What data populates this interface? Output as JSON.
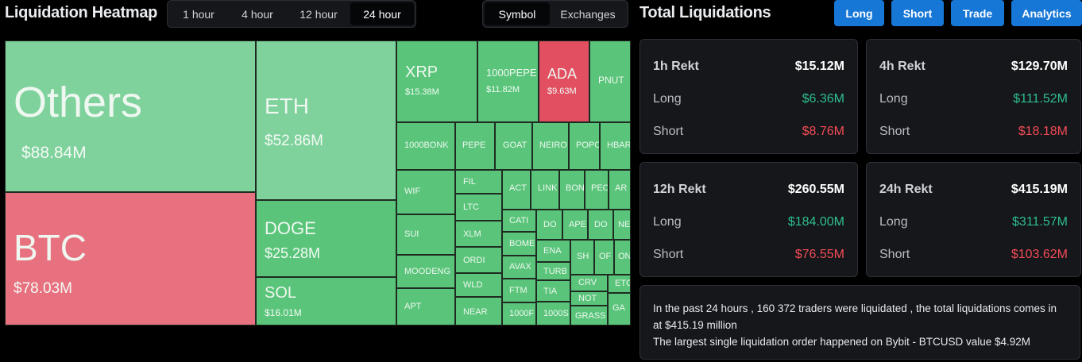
{
  "heatmap": {
    "title": "Liquidation Heatmap",
    "timeframes": [
      "1 hour",
      "4 hour",
      "12 hour",
      "24 hour"
    ],
    "active_timeframe": "24 hour",
    "modes": [
      "Symbol",
      "Exchanges"
    ],
    "active_mode": "Symbol",
    "tiles": [
      {
        "name": "Others",
        "value": "$88.84M",
        "color": "lg"
      },
      {
        "name": "BTC",
        "value": "$78.03M",
        "color": "r"
      },
      {
        "name": "ETH",
        "value": "$52.86M",
        "color": "lg"
      },
      {
        "name": "DOGE",
        "value": "$25.28M",
        "color": "g"
      },
      {
        "name": "SOL",
        "value": "$16.01M",
        "color": "g"
      },
      {
        "name": "XRP",
        "value": "$15.38M",
        "color": "g"
      },
      {
        "name": "1000PEPE",
        "value": "$11.82M",
        "color": "g"
      },
      {
        "name": "ADA",
        "value": "$9.63M",
        "color": "dr"
      },
      {
        "name": "PNUT",
        "value": "",
        "color": "g"
      },
      {
        "name": "1000BONK",
        "value": "",
        "color": "g"
      },
      {
        "name": "PEPE",
        "value": "",
        "color": "g"
      },
      {
        "name": "GOAT",
        "value": "",
        "color": "g"
      },
      {
        "name": "NEIRO",
        "value": "",
        "color": "g"
      },
      {
        "name": "POPC",
        "value": "",
        "color": "g"
      },
      {
        "name": "HBAR",
        "value": "",
        "color": "g"
      },
      {
        "name": "WIF",
        "value": "",
        "color": "g"
      },
      {
        "name": "FIL",
        "value": "",
        "color": "g"
      },
      {
        "name": "ACT",
        "value": "",
        "color": "g"
      },
      {
        "name": "LINK",
        "value": "",
        "color": "g"
      },
      {
        "name": "BON",
        "value": "",
        "color": "g"
      },
      {
        "name": "PEO",
        "value": "",
        "color": "g"
      },
      {
        "name": "AR",
        "value": "",
        "color": "g"
      },
      {
        "name": "LTC",
        "value": "",
        "color": "g"
      },
      {
        "name": "SUI",
        "value": "",
        "color": "g"
      },
      {
        "name": "XLM",
        "value": "",
        "color": "g"
      },
      {
        "name": "CATI",
        "value": "",
        "color": "g"
      },
      {
        "name": "DO",
        "value": "",
        "color": "g"
      },
      {
        "name": "APE",
        "value": "",
        "color": "g"
      },
      {
        "name": "DO",
        "value": "",
        "color": "g"
      },
      {
        "name": "NE",
        "value": "",
        "color": "g"
      },
      {
        "name": "BOME",
        "value": "",
        "color": "g"
      },
      {
        "name": "ORDI",
        "value": "",
        "color": "g"
      },
      {
        "name": "ENA",
        "value": "",
        "color": "g"
      },
      {
        "name": "SH",
        "value": "",
        "color": "g"
      },
      {
        "name": "OF",
        "value": "",
        "color": "g"
      },
      {
        "name": "ON",
        "value": "",
        "color": "g"
      },
      {
        "name": "MOODENG",
        "value": "",
        "color": "g"
      },
      {
        "name": "AVAX",
        "value": "",
        "color": "g"
      },
      {
        "name": "TURB",
        "value": "",
        "color": "g"
      },
      {
        "name": "WLD",
        "value": "",
        "color": "g"
      },
      {
        "name": "CRV",
        "value": "",
        "color": "g"
      },
      {
        "name": "ETC",
        "value": "",
        "color": "g"
      },
      {
        "name": "FTM",
        "value": "",
        "color": "g"
      },
      {
        "name": "TIA",
        "value": "",
        "color": "g"
      },
      {
        "name": "NOT",
        "value": "",
        "color": "g"
      },
      {
        "name": "APT",
        "value": "",
        "color": "g"
      },
      {
        "name": "NEAR",
        "value": "",
        "color": "g"
      },
      {
        "name": "1000F",
        "value": "",
        "color": "g"
      },
      {
        "name": "1000S",
        "value": "",
        "color": "g"
      },
      {
        "name": "GRASS",
        "value": "",
        "color": "g"
      },
      {
        "name": "GA",
        "value": "",
        "color": "g"
      }
    ]
  },
  "totals": {
    "title": "Total Liquidations",
    "buttons": [
      "Long",
      "Short",
      "Trade",
      "Analytics"
    ],
    "cards": [
      {
        "label": "1h Rekt",
        "total": "$15.12M",
        "long_label": "Long",
        "long": "$6.36M",
        "short_label": "Short",
        "short": "$8.76M"
      },
      {
        "label": "4h Rekt",
        "total": "$129.70M",
        "long_label": "Long",
        "long": "$111.52M",
        "short_label": "Short",
        "short": "$18.18M"
      },
      {
        "label": "12h Rekt",
        "total": "$260.55M",
        "long_label": "Long",
        "long": "$184.00M",
        "short_label": "Short",
        "short": "$76.55M"
      },
      {
        "label": "24h Rekt",
        "total": "$415.19M",
        "long_label": "Long",
        "long": "$311.57M",
        "short_label": "Short",
        "short": "$103.62M"
      }
    ],
    "summary_line1": "In the past 24 hours , 160 372 traders were liquidated , the total liquidations comes in at $415.19 million",
    "summary_line2": "The largest single liquidation order happened on Bybit - BTCUSD value $4.92M"
  },
  "colors": {
    "accent": "#1777d7",
    "long": "#2fbf8f",
    "short": "#f24b55",
    "tile_green": "#5ac57a",
    "tile_light_green": "#7fd29c",
    "tile_red": "#e8717f",
    "tile_dark_red": "#e14f61"
  }
}
